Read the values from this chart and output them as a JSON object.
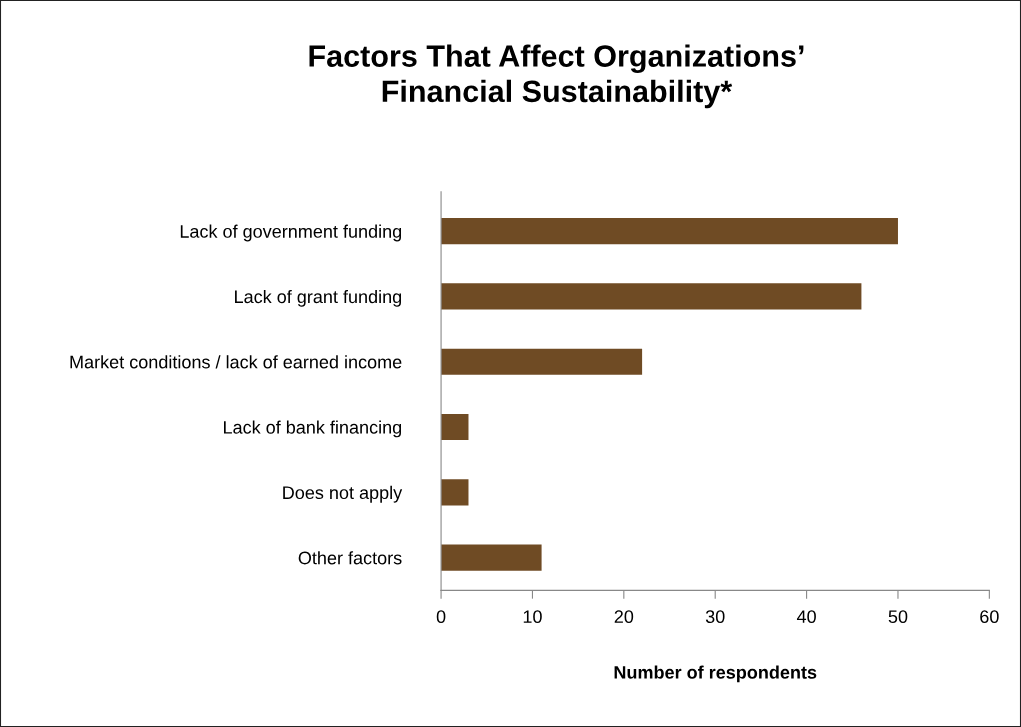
{
  "chart_data": {
    "type": "bar",
    "orientation": "horizontal",
    "title": "Factors That Affect Organizations’\nFinancial Sustainability*",
    "categories": [
      "Lack of government funding",
      "Lack of grant funding",
      "Market conditions / lack of earned income",
      "Lack of bank financing",
      "Does not apply",
      "Other factors"
    ],
    "values": [
      50,
      46,
      22,
      3,
      3,
      11
    ],
    "color": "#6f4b24",
    "xlabel": "Number of respondents",
    "xlim": [
      0,
      60
    ],
    "xticks": [
      0,
      10,
      20,
      30,
      40,
      50,
      60
    ],
    "grid": false,
    "legend": false
  }
}
